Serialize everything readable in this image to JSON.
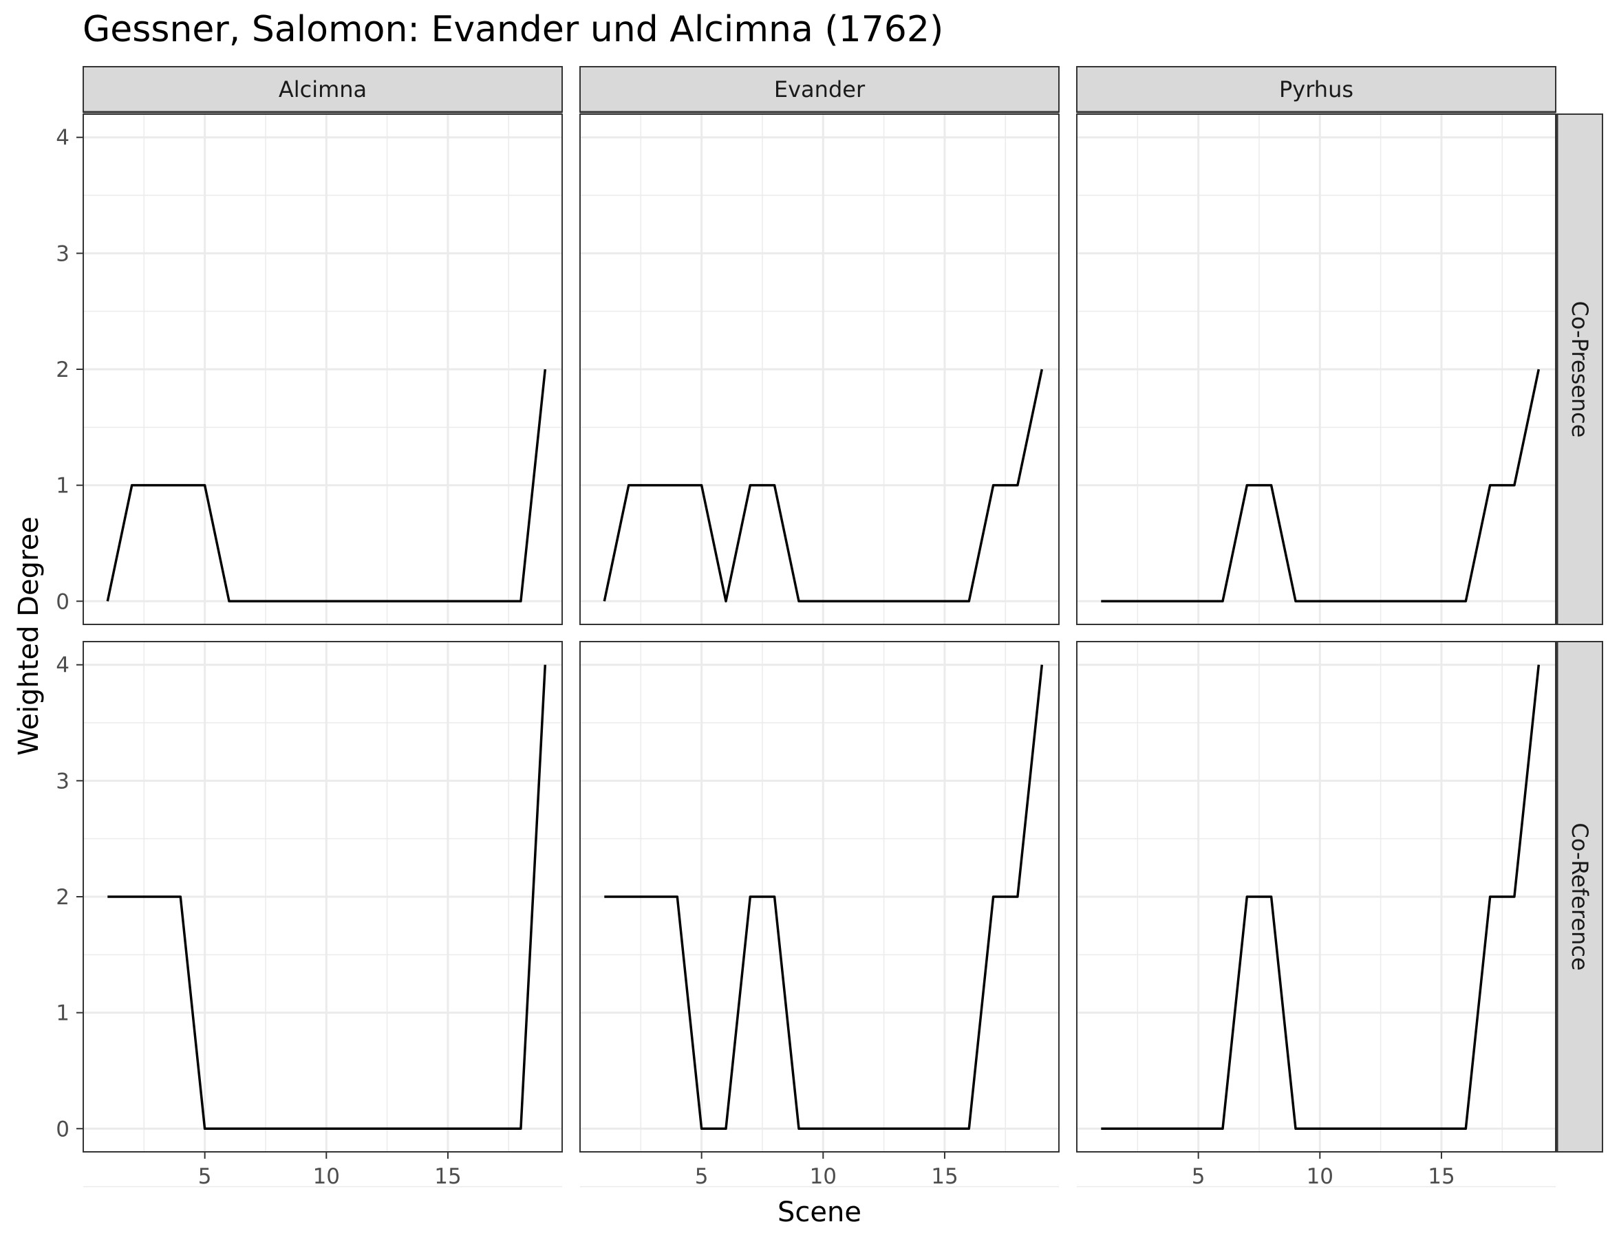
{
  "chart_data": {
    "type": "line",
    "title": "Gessner, Salomon: Evander und Alcimna (1762)",
    "xlabel": "Scene",
    "ylabel": "Weighted Degree",
    "xlim": [
      0,
      19.7
    ],
    "ylim": [
      -0.2,
      4.2
    ],
    "x_ticks": [
      5,
      10,
      15
    ],
    "y_ticks": [
      0,
      1,
      2,
      3,
      4
    ],
    "grid": true,
    "legend": "none",
    "line_color": "#000000",
    "column_facets": [
      "Alcimna",
      "Evander",
      "Pyrhus"
    ],
    "row_facets": [
      "Co-Presence",
      "Co-Reference"
    ],
    "x": [
      1,
      2,
      3,
      4,
      5,
      6,
      7,
      8,
      9,
      10,
      11,
      12,
      13,
      14,
      15,
      16,
      17,
      18,
      19
    ],
    "panels": [
      {
        "row": "Co-Presence",
        "column": "Alcimna",
        "values": [
          0,
          1,
          1,
          1,
          1,
          0,
          0,
          0,
          0,
          0,
          0,
          0,
          0,
          0,
          0,
          0,
          0,
          0,
          2
        ]
      },
      {
        "row": "Co-Presence",
        "column": "Evander",
        "values": [
          0,
          1,
          1,
          1,
          1,
          0,
          1,
          1,
          0,
          0,
          0,
          0,
          0,
          0,
          0,
          0,
          1,
          1,
          2
        ]
      },
      {
        "row": "Co-Presence",
        "column": "Pyrhus",
        "values": [
          0,
          0,
          0,
          0,
          0,
          0,
          1,
          1,
          0,
          0,
          0,
          0,
          0,
          0,
          0,
          0,
          1,
          1,
          2
        ]
      },
      {
        "row": "Co-Reference",
        "column": "Alcimna",
        "values": [
          2,
          2,
          2,
          2,
          0,
          0,
          0,
          0,
          0,
          0,
          0,
          0,
          0,
          0,
          0,
          0,
          0,
          0,
          4
        ]
      },
      {
        "row": "Co-Reference",
        "column": "Evander",
        "values": [
          2,
          2,
          2,
          2,
          0,
          0,
          2,
          2,
          0,
          0,
          0,
          0,
          0,
          0,
          0,
          0,
          2,
          2,
          4
        ]
      },
      {
        "row": "Co-Reference",
        "column": "Pyrhus",
        "values": [
          0,
          0,
          0,
          0,
          0,
          0,
          2,
          2,
          0,
          0,
          0,
          0,
          0,
          0,
          0,
          0,
          2,
          2,
          4
        ]
      }
    ]
  }
}
